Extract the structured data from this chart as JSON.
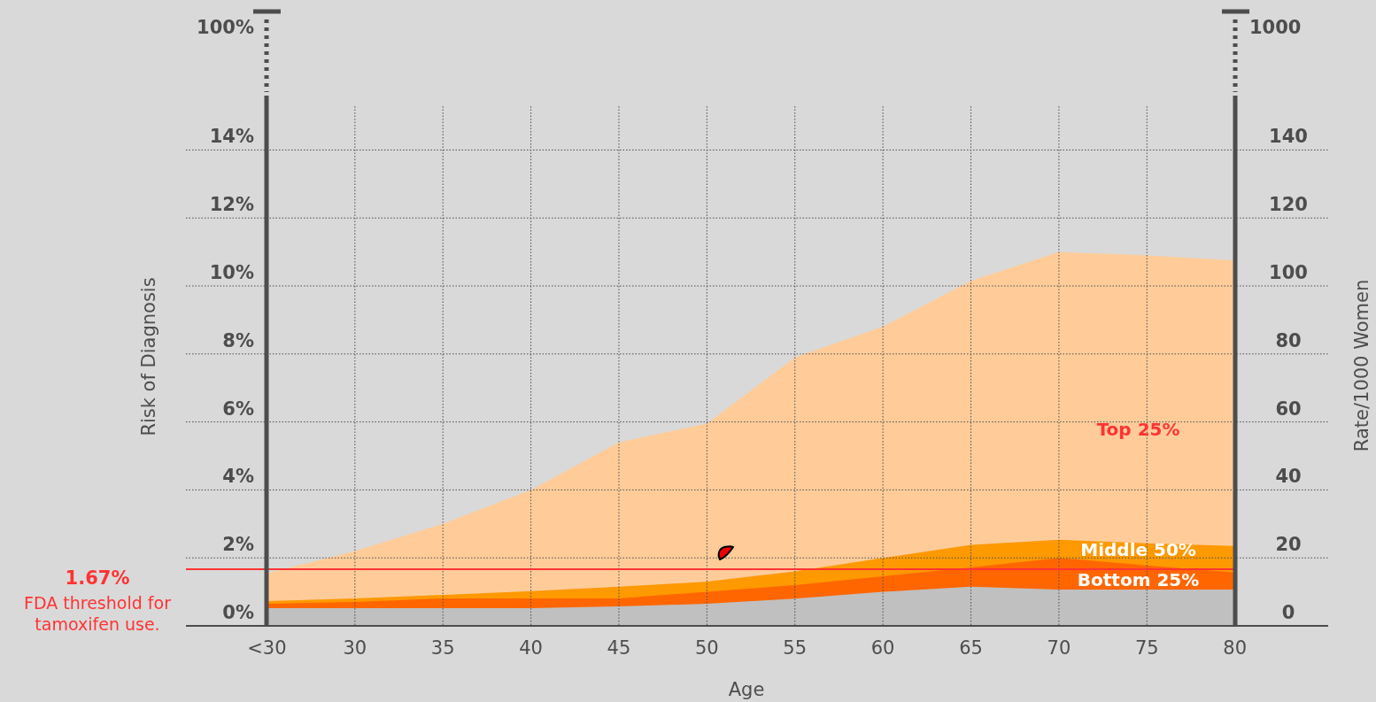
{
  "chart_data": {
    "type": "area",
    "xlabel": "Age",
    "ylabel": "Risk of Diagnosis",
    "y2label": "Rate/1000 Women",
    "x": [
      25,
      30,
      35,
      40,
      45,
      50,
      55,
      60,
      65,
      70,
      75,
      80
    ],
    "series": [
      {
        "name": "Top 25%",
        "color": "#ffcc99",
        "values": [
          1.54,
          2.2,
          3.0,
          4.0,
          5.4,
          5.95,
          7.9,
          8.8,
          10.15,
          11.0,
          10.9,
          10.75
        ]
      },
      {
        "name": "Middle 50%",
        "color": "#ff9900",
        "values": [
          0.73,
          0.81,
          0.91,
          1.02,
          1.15,
          1.3,
          1.6,
          2.0,
          2.38,
          2.53,
          2.43,
          2.35
        ]
      },
      {
        "name": "Bottom 25%",
        "color": "#ff6600",
        "values": [
          0.65,
          0.7,
          0.81,
          0.81,
          0.81,
          1.0,
          1.2,
          1.46,
          1.72,
          2.0,
          1.78,
          1.57
        ]
      },
      {
        "color": "#c0c0c0",
        "values": [
          0.52,
          0.52,
          0.52,
          0.52,
          0.57,
          0.65,
          0.8,
          1.0,
          1.15,
          1.07,
          1.07,
          1.07
        ]
      }
    ],
    "xlim": [
      20.4,
      85.3
    ],
    "xticks": [
      {
        "value": 25,
        "label": "<30"
      },
      30,
      35,
      40,
      45,
      50,
      55,
      60,
      65,
      70,
      75,
      80
    ],
    "ylim": [
      0,
      15.6
    ],
    "yticks": [
      {
        "value": 0,
        "label": "0%"
      },
      {
        "value": 2,
        "label": "2%"
      },
      {
        "value": 4,
        "label": "4%"
      },
      {
        "value": 6,
        "label": "6%"
      },
      {
        "value": 8,
        "label": "8%"
      },
      {
        "value": 10,
        "label": "10%"
      },
      {
        "value": 12,
        "label": "12%"
      },
      {
        "value": 14,
        "label": "14%"
      }
    ],
    "y2lim": [
      0,
      156
    ],
    "y2ticks": [
      0,
      20,
      40,
      60,
      80,
      100,
      120,
      140
    ],
    "ref_lines": [
      {
        "axis": "y",
        "value": 1.67,
        "label": "1.67%",
        "color": "#ff3333"
      }
    ],
    "annotations": [
      "100%",
      "1000",
      "FDA threshold for tamoxifen use."
    ],
    "grid": true
  }
}
